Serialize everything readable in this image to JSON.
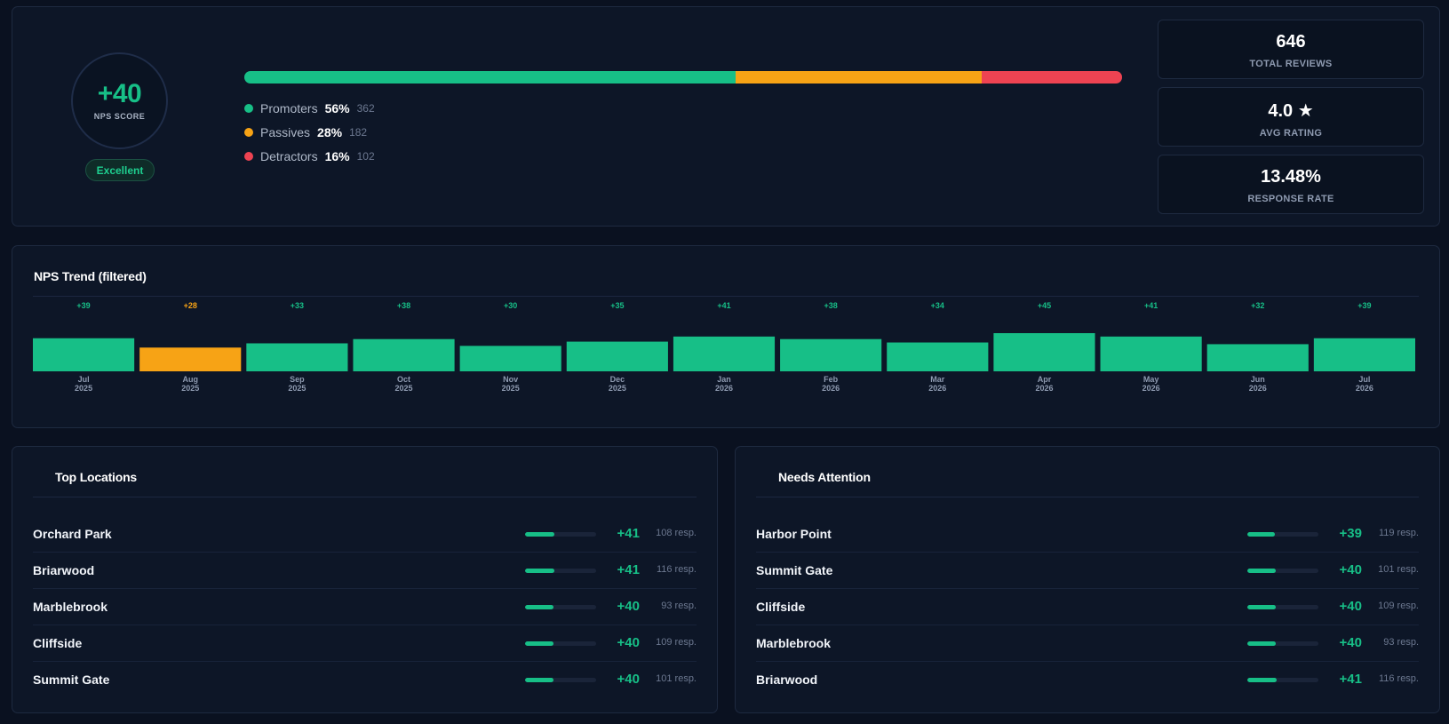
{
  "summary": {
    "nps_score": "+40",
    "nps_label": "NPS SCORE",
    "rating_badge": "Excellent",
    "distribution": [
      {
        "name": "Promoters",
        "pct": "56%",
        "count": "362",
        "fraction": 0.56,
        "color": "#17bf87"
      },
      {
        "name": "Passives",
        "pct": "28%",
        "count": "182",
        "fraction": 0.28,
        "color": "#f7a315"
      },
      {
        "name": "Detractors",
        "pct": "16%",
        "count": "102",
        "fraction": 0.16,
        "color": "#ee4352"
      }
    ],
    "kpis": [
      {
        "value": "646",
        "label": "TOTAL REVIEWS"
      },
      {
        "value": "4.0 ★",
        "label": "AVG RATING"
      },
      {
        "value": "13.48%",
        "label": "RESPONSE RATE"
      }
    ]
  },
  "trend": {
    "title": "NPS Trend (filtered)"
  },
  "chart_data": {
    "type": "bar",
    "categories": [
      "Jul 2025",
      "Aug 2025",
      "Sep 2025",
      "Oct 2025",
      "Nov 2025",
      "Dec 2025",
      "Jan 2026",
      "Feb 2026",
      "Mar 2026",
      "Apr 2026",
      "May 2026",
      "Jun 2026",
      "Jul 2026"
    ],
    "month_labels": [
      "Jul",
      "Aug",
      "Sep",
      "Oct",
      "Nov",
      "Dec",
      "Jan",
      "Feb",
      "Mar",
      "Apr",
      "May",
      "Jun",
      "Jul"
    ],
    "year_labels": [
      "2025",
      "2025",
      "2025",
      "2025",
      "2025",
      "2025",
      "2026",
      "2026",
      "2026",
      "2026",
      "2026",
      "2026",
      "2026"
    ],
    "values": [
      39,
      28,
      33,
      38,
      30,
      35,
      41,
      38,
      34,
      45,
      41,
      32,
      39
    ],
    "value_labels": [
      "+39",
      "+28",
      "+33",
      "+38",
      "+30",
      "+35",
      "+41",
      "+38",
      "+34",
      "+45",
      "+41",
      "+32",
      "+39"
    ],
    "highlight": [
      false,
      true,
      false,
      false,
      false,
      false,
      false,
      false,
      false,
      false,
      false,
      false,
      false
    ],
    "colors": {
      "default": "#17bf87",
      "highlight": "#f7a315"
    },
    "title": "NPS Trend (filtered)",
    "grid": false
  },
  "top_locations": {
    "title": "Top Locations",
    "rows": [
      {
        "name": "Orchard Park",
        "score": "+41",
        "resp": "108 resp.",
        "level": 0.41
      },
      {
        "name": "Briarwood",
        "score": "+41",
        "resp": "116 resp.",
        "level": 0.41
      },
      {
        "name": "Marblebrook",
        "score": "+40",
        "resp": "93 resp.",
        "level": 0.4
      },
      {
        "name": "Cliffside",
        "score": "+40",
        "resp": "109 resp.",
        "level": 0.4
      },
      {
        "name": "Summit Gate",
        "score": "+40",
        "resp": "101 resp.",
        "level": 0.4
      }
    ]
  },
  "needs_attention": {
    "title": "Needs Attention",
    "rows": [
      {
        "name": "Harbor Point",
        "score": "+39",
        "resp": "119 resp.",
        "level": 0.39
      },
      {
        "name": "Summit Gate",
        "score": "+40",
        "resp": "101 resp.",
        "level": 0.4
      },
      {
        "name": "Cliffside",
        "score": "+40",
        "resp": "109 resp.",
        "level": 0.4
      },
      {
        "name": "Marblebrook",
        "score": "+40",
        "resp": "93 resp.",
        "level": 0.4
      },
      {
        "name": "Briarwood",
        "score": "+41",
        "resp": "116 resp.",
        "level": 0.41
      }
    ]
  }
}
